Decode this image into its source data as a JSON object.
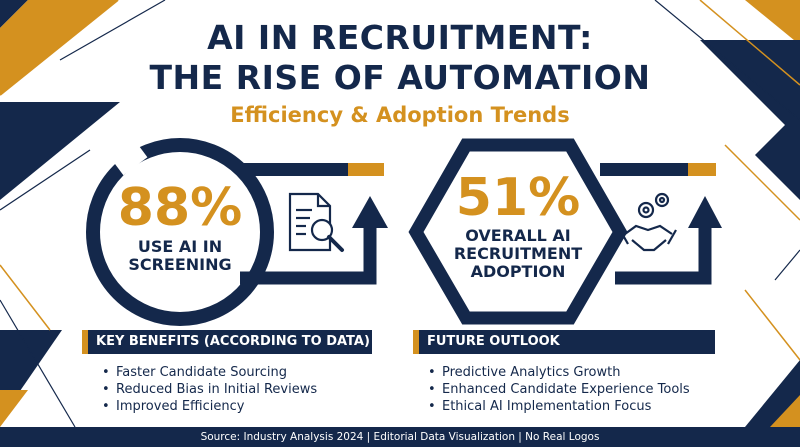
{
  "title": {
    "line1": "AI IN RECRUITMENT:",
    "line2": "THE RISE OF AUTOMATION",
    "subtitle": "Efficiency & Adoption Trends"
  },
  "stats": [
    {
      "value": "88%",
      "label_lines": [
        "USE AI IN",
        "SCREENING"
      ],
      "icon": "document-search-icon"
    },
    {
      "value": "51%",
      "label_lines": [
        "OVERALL AI",
        "RECRUITMENT",
        "ADOPTION"
      ],
      "icon": "handshake-gears-icon"
    }
  ],
  "panels": {
    "key_benefits": {
      "header": "KEY BENEFITS (ACCORDING TO DATA)",
      "items": [
        "Faster Candidate Sourcing",
        "Reduced Bias in Initial Reviews",
        "Improved Efficiency"
      ]
    },
    "future_outlook": {
      "header": "FUTURE OUTLOOK",
      "items": [
        "Predictive Analytics Growth",
        "Enhanced Candidate Experience Tools",
        "Ethical AI Implementation Focus"
      ]
    }
  },
  "footer": "Source: Industry Analysis 2024 | Editorial Data Visualization | No Real Logos",
  "colors": {
    "navy": "#14284b",
    "gold": "#d4911f",
    "background": "#ffffff"
  }
}
